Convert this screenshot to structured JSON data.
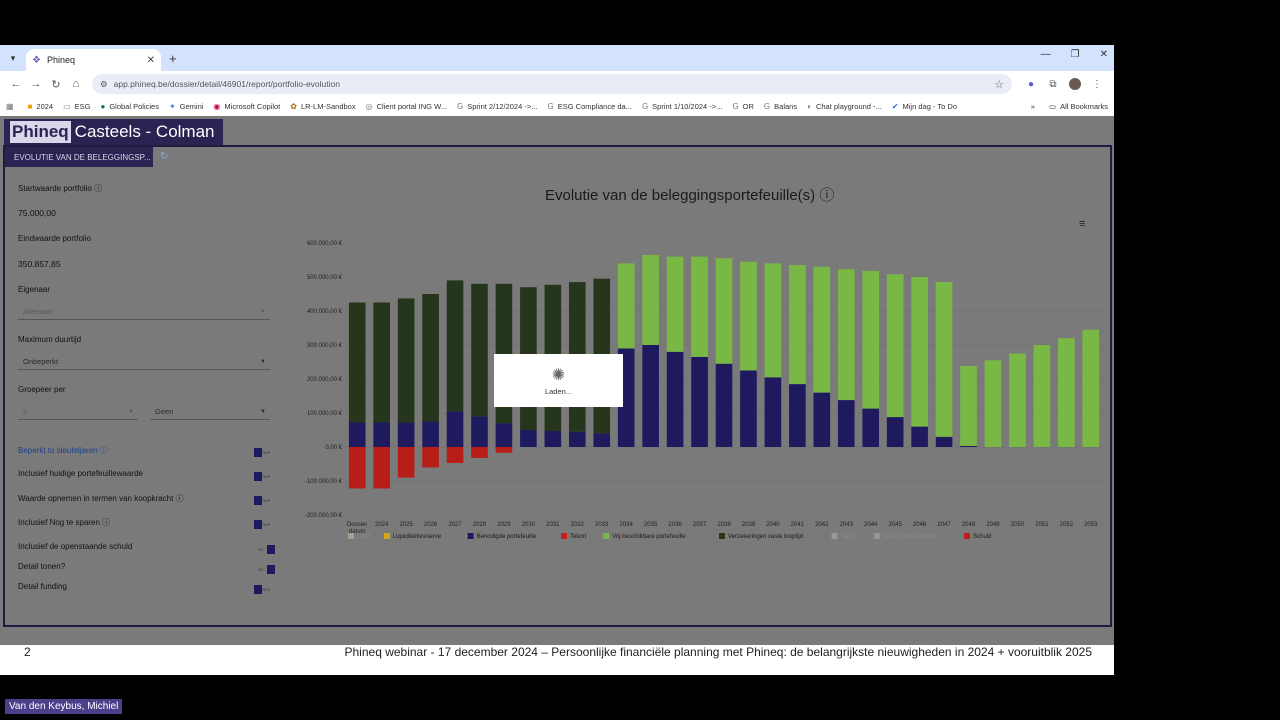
{
  "browser": {
    "tab_title": "Phineq",
    "url": "app.phineq.be/dossier/detail/46901/report/portfolio-evolution",
    "bookmarks": [
      "2024",
      "ESG",
      "Global Policies",
      "Gemini",
      "Microsoft Copilot",
      "LR-LM-Sandbox",
      "Client portal ING W...",
      "Sprint 2/12/2024 ->...",
      "ESG Compliance da...",
      "Sprint 1/10/2024 ->...",
      "OR",
      "Balans",
      "Chat playground -...",
      "Mijn dag - To Do"
    ],
    "all_bookmarks": "All Bookmarks"
  },
  "app": {
    "logo": "Phineq",
    "client_name": "Casteels - Colman",
    "active_tab": "EVOLUTIE VAN DE BELEGGINGSP..."
  },
  "form": {
    "start_label": "Startwaarde portfolio",
    "start_value": "75.000,00",
    "end_label": "Eindwaarde portfolio",
    "end_value": "350.857,85",
    "owner_label": "Eigenaar",
    "owner_value": "Allemaal",
    "duration_label": "Maximum duurtijd",
    "duration_value": "Onbeperkt",
    "group_label": "Groepeer per",
    "group_num": "5",
    "group_value": "Geen",
    "toggles": [
      {
        "label": "Beperkt to sleuteljaren",
        "state": "Nee"
      },
      {
        "label": "Inclusief huidige portefeuillewaarde",
        "state": "Nee"
      },
      {
        "label": "Waarde opnemen in termen van koopkracht",
        "state": "Nee"
      },
      {
        "label": "Inclusief Nog te sparen",
        "state": "Nee"
      },
      {
        "label": "Inclusief de openstaande schuld",
        "state": "Ja"
      },
      {
        "label": "Detail tonen?",
        "state": "Ja"
      },
      {
        "label": "Detail funding",
        "state": "Nee"
      }
    ]
  },
  "loader_text": "Laden...",
  "caption": {
    "page": "2",
    "text": "Phineq webinar - 17 december 2024 – Persoonlijke financiële planning met Phineq: de belangrijkste nieuwigheden in 2024 + vooruitblik 2025"
  },
  "speaker": "Van den Keybus, Michiel",
  "chart_data": {
    "type": "bar",
    "title": "Evolutie van de beleggingsportefeuille(s)",
    "y_ticks": [
      "600.000,00 €",
      "500.000,00 €",
      "400.000,00 €",
      "300.000,00 €",
      "200.000,00 €",
      "100.000,00 €",
      "0,00 €",
      "-100.000,00 €",
      "-200.000,00 €"
    ],
    "ylim": [
      -200000,
      600000
    ],
    "categories": [
      "Dossier datum",
      "2024",
      "2025",
      "2026",
      "2027",
      "2028",
      "2029",
      "2030",
      "2031",
      "2032",
      "2033",
      "2034",
      "2035",
      "2036",
      "2037",
      "2038",
      "2039",
      "2040",
      "2041",
      "2042",
      "2043",
      "2044",
      "2045",
      "2046",
      "2047",
      "2048",
      "2049",
      "2050",
      "2051",
      "2052",
      "2053"
    ],
    "series": [
      {
        "name": "Benodigde portefeuille",
        "color": "#1f1a5e",
        "values": [
          72000,
          72000,
          72000,
          75000,
          105000,
          90000,
          70000,
          50000,
          47000,
          45000,
          40000,
          290000,
          300000,
          280000,
          265000,
          245000,
          225000,
          205000,
          185000,
          160000,
          138000,
          113000,
          88000,
          60000,
          30000,
          3000,
          0,
          0,
          0,
          0,
          0
        ]
      },
      {
        "name": "Verzekeringen vaste looptijd",
        "color": "#26361c",
        "values": [
          353000,
          353000,
          365000,
          375000,
          385000,
          390000,
          410000,
          420000,
          430000,
          440000,
          455000,
          0,
          0,
          0,
          0,
          0,
          0,
          0,
          0,
          0,
          0,
          0,
          0,
          0,
          0,
          0,
          0,
          0,
          0,
          0,
          0
        ]
      },
      {
        "name": "Vrij beschikbare portefeuille",
        "color": "#7ab846",
        "values": [
          0,
          0,
          0,
          0,
          0,
          0,
          0,
          0,
          0,
          0,
          0,
          250000,
          265000,
          280000,
          295000,
          310000,
          320000,
          335000,
          350000,
          370000,
          385000,
          405000,
          420000,
          440000,
          455000,
          235000,
          255000,
          275000,
          300000,
          320000,
          345000
        ]
      },
      {
        "name": "Schuld",
        "color": "#b81e18",
        "values": [
          -122000,
          -122000,
          -90000,
          -60000,
          -47000,
          -32000,
          -17000,
          0,
          0,
          0,
          0,
          0,
          0,
          0,
          0,
          0,
          0,
          0,
          0,
          0,
          0,
          0,
          0,
          0,
          0,
          0,
          0,
          0,
          0,
          0,
          0
        ]
      }
    ],
    "legend": [
      {
        "name": "Cash",
        "color": "#f0e6b0",
        "muted": true
      },
      {
        "name": "Liquiditeitsreserve",
        "color": "#d4a41a",
        "muted": false
      },
      {
        "name": "Benodigde portefeuille",
        "color": "#1f1a5e",
        "muted": false
      },
      {
        "name": "Tekort",
        "color": "#c8201b",
        "muted": false
      },
      {
        "name": "Vrij beschikbare portefeuille",
        "color": "#7ab846",
        "muted": false
      },
      {
        "name": "Verzekeringen vaste looptijd",
        "color": "#26361c",
        "muted": false
      },
      {
        "name": "Tak 21",
        "color": "#c5d3ea",
        "muted": true
      },
      {
        "name": "Tak 23 vaste looptijd",
        "color": "#b7c7e3",
        "muted": true
      },
      {
        "name": "Schuld",
        "color": "#b81e18",
        "muted": false
      }
    ]
  }
}
